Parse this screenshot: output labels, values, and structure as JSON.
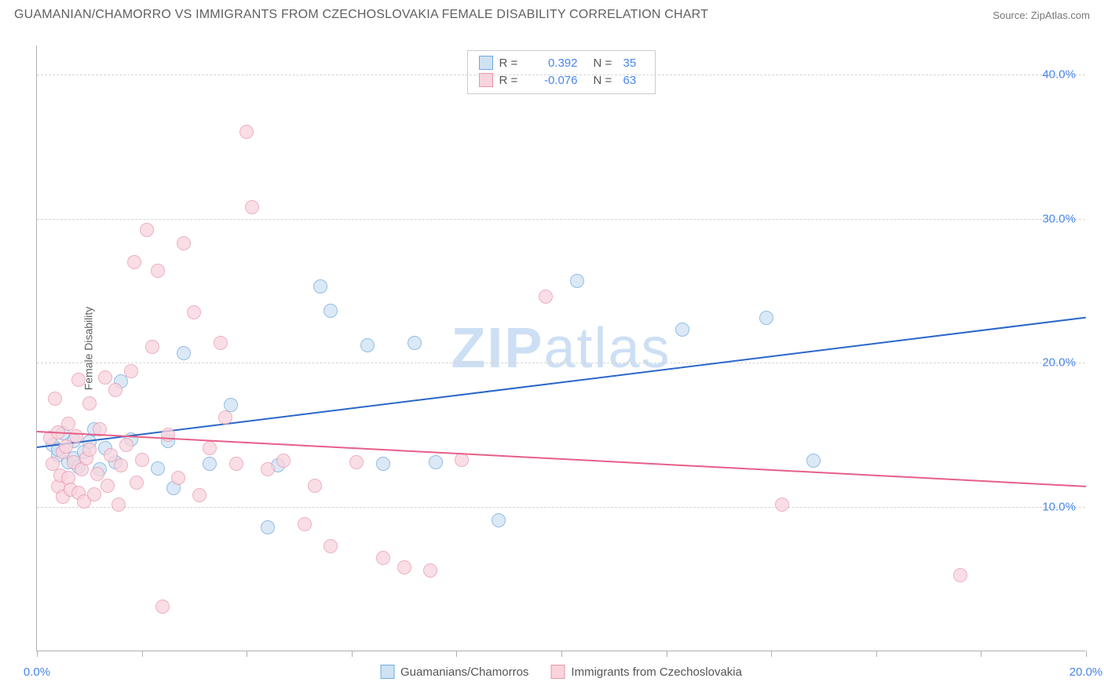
{
  "title": "GUAMANIAN/CHAMORRO VS IMMIGRANTS FROM CZECHOSLOVAKIA FEMALE DISABILITY CORRELATION CHART",
  "source_label": "Source:",
  "source_name": "ZipAtlas.com",
  "ylabel": "Female Disability",
  "watermark": "ZIPatlas",
  "chart": {
    "type": "scatter",
    "xlim": [
      0,
      20
    ],
    "ylim": [
      0,
      42
    ],
    "x_ticks": [
      0,
      2,
      4,
      6,
      8,
      10,
      12,
      14,
      16,
      18,
      20
    ],
    "x_tick_labels_shown": {
      "0": "0.0%",
      "20": "20.0%"
    },
    "y_gridlines": [
      10,
      20,
      30,
      40
    ],
    "y_tick_labels": {
      "10": "10.0%",
      "20": "20.0%",
      "30": "30.0%",
      "40": "40.0%"
    },
    "grid_color": "#d5d5d5",
    "axis_color": "#b0b0b0",
    "tick_label_color": "#4a86e8",
    "background_color": "#ffffff"
  },
  "series": [
    {
      "key": "guamanians",
      "label": "Guamanians/Chamorros",
      "fill": "#cfe2f3",
      "stroke": "#6fa8dc",
      "line_color": "#2a67c9",
      "R": "0.392",
      "N": "35",
      "reg": {
        "x1": 0,
        "y1": 14.2,
        "x2": 20,
        "y2": 23.2
      },
      "points": [
        [
          0.3,
          14.3
        ],
        [
          0.4,
          13.6
        ],
        [
          0.4,
          14.0
        ],
        [
          0.5,
          15.1
        ],
        [
          0.6,
          13.1
        ],
        [
          0.7,
          13.4
        ],
        [
          0.7,
          14.6
        ],
        [
          0.8,
          12.8
        ],
        [
          0.9,
          13.8
        ],
        [
          1.0,
          14.5
        ],
        [
          1.1,
          15.4
        ],
        [
          1.2,
          12.6
        ],
        [
          1.3,
          14.1
        ],
        [
          1.5,
          13.1
        ],
        [
          1.6,
          18.7
        ],
        [
          1.8,
          14.7
        ],
        [
          2.3,
          12.7
        ],
        [
          2.5,
          14.6
        ],
        [
          2.6,
          11.3
        ],
        [
          2.8,
          20.7
        ],
        [
          3.3,
          13.0
        ],
        [
          3.7,
          17.1
        ],
        [
          4.4,
          8.6
        ],
        [
          4.6,
          12.9
        ],
        [
          5.4,
          25.3
        ],
        [
          5.6,
          23.6
        ],
        [
          6.3,
          21.2
        ],
        [
          6.6,
          13.0
        ],
        [
          7.2,
          21.4
        ],
        [
          7.6,
          13.1
        ],
        [
          8.8,
          9.1
        ],
        [
          10.3,
          25.7
        ],
        [
          12.3,
          22.3
        ],
        [
          13.9,
          23.1
        ],
        [
          14.8,
          13.2
        ]
      ]
    },
    {
      "key": "czech",
      "label": "Immigrants from Czechoslovakia",
      "fill": "#f9d4dd",
      "stroke": "#e796ad",
      "line_color": "#e75f88",
      "R": "-0.076",
      "N": "63",
      "reg": {
        "x1": 0,
        "y1": 15.3,
        "x2": 20,
        "y2": 11.5
      },
      "points": [
        [
          0.25,
          14.8
        ],
        [
          0.3,
          13.0
        ],
        [
          0.35,
          17.5
        ],
        [
          0.4,
          11.4
        ],
        [
          0.4,
          15.2
        ],
        [
          0.45,
          12.2
        ],
        [
          0.5,
          13.8
        ],
        [
          0.5,
          10.7
        ],
        [
          0.55,
          14.2
        ],
        [
          0.6,
          12.0
        ],
        [
          0.6,
          15.8
        ],
        [
          0.65,
          11.2
        ],
        [
          0.7,
          13.1
        ],
        [
          0.75,
          14.9
        ],
        [
          0.8,
          18.8
        ],
        [
          0.8,
          11.0
        ],
        [
          0.85,
          12.6
        ],
        [
          0.9,
          10.4
        ],
        [
          0.95,
          13.4
        ],
        [
          1.0,
          17.2
        ],
        [
          1.0,
          14.0
        ],
        [
          1.1,
          10.9
        ],
        [
          1.15,
          12.3
        ],
        [
          1.2,
          15.4
        ],
        [
          1.3,
          19.0
        ],
        [
          1.35,
          11.5
        ],
        [
          1.4,
          13.6
        ],
        [
          1.5,
          18.1
        ],
        [
          1.55,
          10.2
        ],
        [
          1.6,
          12.9
        ],
        [
          1.7,
          14.3
        ],
        [
          1.8,
          19.4
        ],
        [
          1.85,
          27.0
        ],
        [
          1.9,
          11.7
        ],
        [
          2.0,
          13.3
        ],
        [
          2.1,
          29.2
        ],
        [
          2.2,
          21.1
        ],
        [
          2.3,
          26.4
        ],
        [
          2.4,
          3.1
        ],
        [
          2.5,
          15.0
        ],
        [
          2.7,
          12.0
        ],
        [
          2.8,
          28.3
        ],
        [
          3.0,
          23.5
        ],
        [
          3.1,
          10.8
        ],
        [
          3.3,
          14.1
        ],
        [
          3.5,
          21.4
        ],
        [
          3.8,
          13.0
        ],
        [
          4.0,
          36.0
        ],
        [
          4.1,
          30.8
        ],
        [
          4.4,
          12.6
        ],
        [
          4.7,
          13.2
        ],
        [
          5.1,
          8.8
        ],
        [
          5.3,
          11.5
        ],
        [
          5.6,
          7.3
        ],
        [
          6.1,
          13.1
        ],
        [
          6.6,
          6.5
        ],
        [
          7.0,
          5.8
        ],
        [
          7.5,
          5.6
        ],
        [
          8.1,
          13.3
        ],
        [
          9.7,
          24.6
        ],
        [
          14.2,
          10.2
        ],
        [
          17.6,
          5.3
        ],
        [
          3.6,
          16.2
        ]
      ]
    }
  ],
  "legend_bottom": [
    {
      "series": "guamanians"
    },
    {
      "series": "czech"
    }
  ]
}
